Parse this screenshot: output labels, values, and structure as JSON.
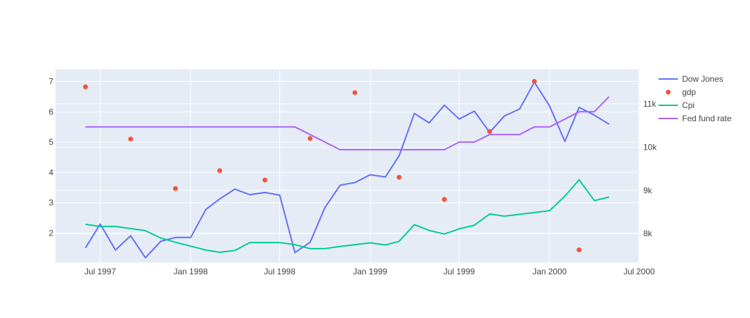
{
  "chart_data": {
    "type": "line",
    "title": "",
    "xlabel": "",
    "ylabel": "",
    "y2label": "",
    "plot_bg": "#e5ecf6",
    "grid": true,
    "legend_position": "top-right",
    "x_axis": {
      "range": [
        "1997-04-01",
        "2000-07-01"
      ],
      "ticks": [
        {
          "date": "1997-07-01",
          "label": "Jul 1997"
        },
        {
          "date": "1998-01-01",
          "label": "Jan 1998"
        },
        {
          "date": "1998-07-01",
          "label": "Jul 1998"
        },
        {
          "date": "1999-01-01",
          "label": "Jan 1999"
        },
        {
          "date": "1999-07-01",
          "label": "Jul 1999"
        },
        {
          "date": "2000-01-01",
          "label": "Jan 2000"
        },
        {
          "date": "2000-07-01",
          "label": "Jul 2000"
        }
      ]
    },
    "y_left": {
      "range": [
        1.03,
        7.4
      ],
      "ticks": [
        2,
        3,
        4,
        5,
        6,
        7
      ],
      "tick_labels": [
        "2",
        "3",
        "4",
        "5",
        "6",
        "7"
      ]
    },
    "y_right": {
      "range": [
        7330,
        11800
      ],
      "ticks": [
        8000,
        9000,
        10000,
        11000
      ],
      "tick_labels": [
        "8k",
        "9k",
        "10k",
        "11k"
      ]
    },
    "series": [
      {
        "name": "Dow Jones",
        "type": "line",
        "axis": "right",
        "color": "#636efa",
        "points": [
          [
            "1997-06-01",
            7670
          ],
          [
            "1997-07-01",
            8220
          ],
          [
            "1997-08-01",
            7620
          ],
          [
            "1997-09-01",
            7950
          ],
          [
            "1997-10-01",
            7440
          ],
          [
            "1997-11-01",
            7820
          ],
          [
            "1997-12-01",
            7910
          ],
          [
            "1998-01-01",
            7910
          ],
          [
            "1998-02-01",
            8560
          ],
          [
            "1998-03-01",
            8800
          ],
          [
            "1998-04-01",
            9030
          ],
          [
            "1998-05-01",
            8900
          ],
          [
            "1998-06-01",
            8950
          ],
          [
            "1998-07-01",
            8890
          ],
          [
            "1998-08-01",
            7560
          ],
          [
            "1998-09-01",
            7800
          ],
          [
            "1998-10-01",
            8600
          ],
          [
            "1998-11-01",
            9120
          ],
          [
            "1998-12-01",
            9180
          ],
          [
            "1999-01-01",
            9360
          ],
          [
            "1999-02-01",
            9310
          ],
          [
            "1999-03-01",
            9800
          ],
          [
            "1999-04-01",
            10780
          ],
          [
            "1999-05-01",
            10560
          ],
          [
            "1999-06-01",
            10970
          ],
          [
            "1999-07-01",
            10650
          ],
          [
            "1999-08-01",
            10830
          ],
          [
            "1999-09-01",
            10340
          ],
          [
            "1999-10-01",
            10720
          ],
          [
            "1999-11-01",
            10880
          ],
          [
            "1999-12-01",
            11500
          ],
          [
            "2000-01-01",
            10950
          ],
          [
            "2000-02-01",
            10130
          ],
          [
            "2000-03-01",
            10920
          ],
          [
            "2000-04-01",
            10740
          ],
          [
            "2000-05-01",
            10530
          ]
        ]
      },
      {
        "name": "gdp",
        "type": "scatter",
        "axis": "left",
        "color": "#ef553b",
        "points": [
          [
            "1997-06-01",
            6.82
          ],
          [
            "1997-09-01",
            5.1
          ],
          [
            "1997-12-01",
            3.47
          ],
          [
            "1998-03-01",
            4.06
          ],
          [
            "1998-06-01",
            3.75
          ],
          [
            "1998-09-01",
            5.12
          ],
          [
            "1998-12-01",
            6.63
          ],
          [
            "1999-03-01",
            3.84
          ],
          [
            "1999-06-01",
            3.11
          ],
          [
            "1999-09-01",
            5.35
          ],
          [
            "1999-12-01",
            7.0
          ],
          [
            "2000-03-01",
            1.45
          ]
        ]
      },
      {
        "name": "Cpi",
        "type": "line",
        "axis": "left",
        "color": "#00cc96",
        "points": [
          [
            "1997-06-01",
            2.29
          ],
          [
            "1997-07-01",
            2.22
          ],
          [
            "1997-08-01",
            2.22
          ],
          [
            "1997-09-01",
            2.15
          ],
          [
            "1997-10-01",
            2.08
          ],
          [
            "1997-11-01",
            1.84
          ],
          [
            "1997-12-01",
            1.7
          ],
          [
            "1998-01-01",
            1.57
          ],
          [
            "1998-02-01",
            1.44
          ],
          [
            "1998-03-01",
            1.37
          ],
          [
            "1998-04-01",
            1.43
          ],
          [
            "1998-05-01",
            1.69
          ],
          [
            "1998-06-01",
            1.69
          ],
          [
            "1998-07-01",
            1.69
          ],
          [
            "1998-08-01",
            1.62
          ],
          [
            "1998-09-01",
            1.49
          ],
          [
            "1998-10-01",
            1.49
          ],
          [
            "1998-11-01",
            1.56
          ],
          [
            "1998-12-01",
            1.62
          ],
          [
            "1999-01-01",
            1.68
          ],
          [
            "1999-02-01",
            1.61
          ],
          [
            "1999-03-01",
            1.73
          ],
          [
            "1999-04-01",
            2.28
          ],
          [
            "1999-05-01",
            2.09
          ],
          [
            "1999-06-01",
            1.97
          ],
          [
            "1999-07-01",
            2.14
          ],
          [
            "1999-08-01",
            2.26
          ],
          [
            "1999-09-01",
            2.63
          ],
          [
            "1999-10-01",
            2.56
          ],
          [
            "1999-11-01",
            2.62
          ],
          [
            "1999-12-01",
            2.68
          ],
          [
            "2000-01-01",
            2.74
          ],
          [
            "2000-02-01",
            3.22
          ],
          [
            "2000-03-01",
            3.76
          ],
          [
            "2000-04-01",
            3.07
          ],
          [
            "2000-05-01",
            3.19
          ]
        ]
      },
      {
        "name": "Fed fund rate",
        "type": "line",
        "axis": "left",
        "color": "#ab63fa",
        "points": [
          [
            "1997-06-01",
            5.5
          ],
          [
            "1998-08-01",
            5.5
          ],
          [
            "1998-11-01",
            4.75
          ],
          [
            "1999-06-01",
            4.75
          ],
          [
            "1999-07-01",
            5.0
          ],
          [
            "1999-08-01",
            5.0
          ],
          [
            "1999-09-01",
            5.25
          ],
          [
            "1999-11-01",
            5.25
          ],
          [
            "1999-12-01",
            5.5
          ],
          [
            "2000-01-01",
            5.5
          ],
          [
            "2000-03-01",
            6.0
          ],
          [
            "2000-04-01",
            6.0
          ],
          [
            "2000-05-01",
            6.5
          ]
        ]
      }
    ]
  }
}
